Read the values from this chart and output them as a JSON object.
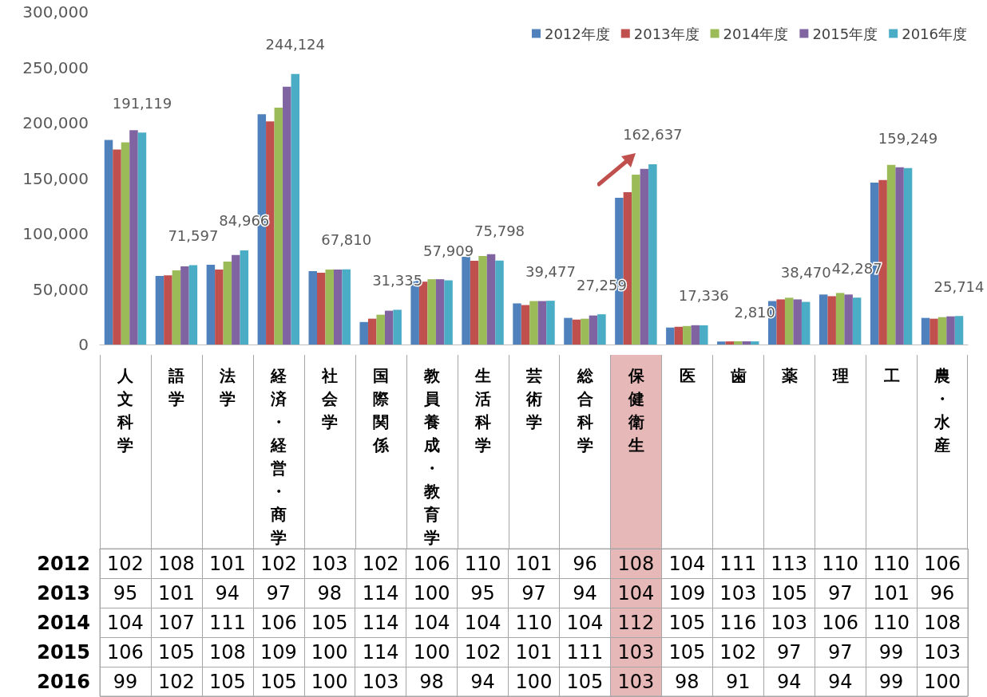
{
  "chart_data": [
    {
      "type": "bar",
      "categories": [
        "人文科学",
        "語学",
        "法学",
        "経済・経営・商学",
        "社会学",
        "国際関係",
        "教員養成・教育学",
        "生活科学",
        "芸術学",
        "総合科学",
        "保健衛生",
        "医",
        "歯",
        "薬",
        "理",
        "工",
        "農・水産"
      ],
      "series": [
        {
          "name": "2012年度",
          "color": "#4f81bd",
          "values": [
            184600,
            61800,
            72000,
            207800,
            66100,
            20300,
            57400,
            79200,
            37100,
            24000,
            132300,
            15300,
            2700,
            39200,
            45100,
            146100,
            24000
          ]
        },
        {
          "name": "2013年度",
          "color": "#c0504d",
          "values": [
            175900,
            62500,
            67600,
            201300,
            64700,
            23300,
            56700,
            75600,
            35600,
            22500,
            137400,
            16000,
            2800,
            40700,
            43600,
            148300,
            23300
          ]
        },
        {
          "name": "2014年度",
          "color": "#9bbb59",
          "values": [
            182400,
            66900,
            74900,
            213700,
            67600,
            26900,
            58900,
            79900,
            39200,
            23300,
            153300,
            16700,
            2900,
            42200,
            46500,
            162100,
            24700
          ]
        },
        {
          "name": "2015年度",
          "color": "#8064a2",
          "values": [
            193300,
            70500,
            80700,
            232600,
            67600,
            30500,
            58900,
            81400,
            39200,
            26200,
            158400,
            17400,
            2900,
            40700,
            45100,
            159900,
            25400
          ]
        },
        {
          "name": "2016年度",
          "color": "#4bacc6",
          "values": [
            191119,
            71597,
            84966,
            244124,
            67810,
            31335,
            57909,
            75798,
            39477,
            27259,
            162637,
            17336,
            2810,
            38470,
            42287,
            159249,
            25714
          ],
          "value_labels": [
            "191,119",
            "71,597",
            "84,966",
            "244,124",
            "67,810",
            "31,335",
            "57,909",
            "75,798",
            "39,477",
            "27,259",
            "162,637",
            "17,336",
            "2,810",
            "38,470",
            "42,287",
            "159,249",
            "25,714"
          ]
        }
      ],
      "ylim": [
        0,
        300000
      ],
      "yticks": [
        {
          "value": 0,
          "label": "0"
        },
        {
          "value": 50000,
          "label": "50,000"
        },
        {
          "value": 100000,
          "label": "100,000"
        },
        {
          "value": 150000,
          "label": "150,000"
        },
        {
          "value": 200000,
          "label": "200,000"
        },
        {
          "value": 250000,
          "label": "250,000"
        },
        {
          "value": 300000,
          "label": "300,000"
        }
      ],
      "grid": false,
      "legend": "top right",
      "tick_labels": "y"
    },
    {
      "type": "heatmap",
      "categories": [
        "人文科学",
        "語学",
        "法学",
        "経済・経営・商学",
        "社会学",
        "国際関係",
        "教員養成・教育学",
        "生活科学",
        "芸術学",
        "総合科学",
        "保健衛生",
        "医",
        "歯",
        "薬",
        "理",
        "工",
        "農・水産"
      ],
      "y_categories": [
        "2012",
        "2013",
        "2014",
        "2015",
        "2016"
      ],
      "cells": [
        [
          102,
          108,
          101,
          102,
          103,
          102,
          106,
          110,
          101,
          96,
          108,
          104,
          111,
          113,
          110,
          110,
          106
        ],
        [
          95,
          101,
          94,
          97,
          98,
          114,
          100,
          95,
          97,
          94,
          104,
          109,
          103,
          105,
          97,
          101,
          96
        ],
        [
          104,
          107,
          111,
          106,
          105,
          114,
          104,
          104,
          110,
          104,
          112,
          105,
          116,
          103,
          106,
          110,
          108
        ],
        [
          106,
          105,
          108,
          109,
          100,
          114,
          100,
          102,
          101,
          111,
          103,
          105,
          102,
          97,
          97,
          99,
          103
        ],
        [
          99,
          102,
          105,
          105,
          100,
          103,
          98,
          94,
          100,
          105,
          103,
          98,
          91,
          94,
          94,
          99,
          100
        ]
      ],
      "data_labels": true,
      "bands": [
        {
          "axis": "x",
          "from": "保健衛生",
          "to": "保健衛生",
          "color": "#e6b8b7"
        }
      ]
    }
  ]
}
